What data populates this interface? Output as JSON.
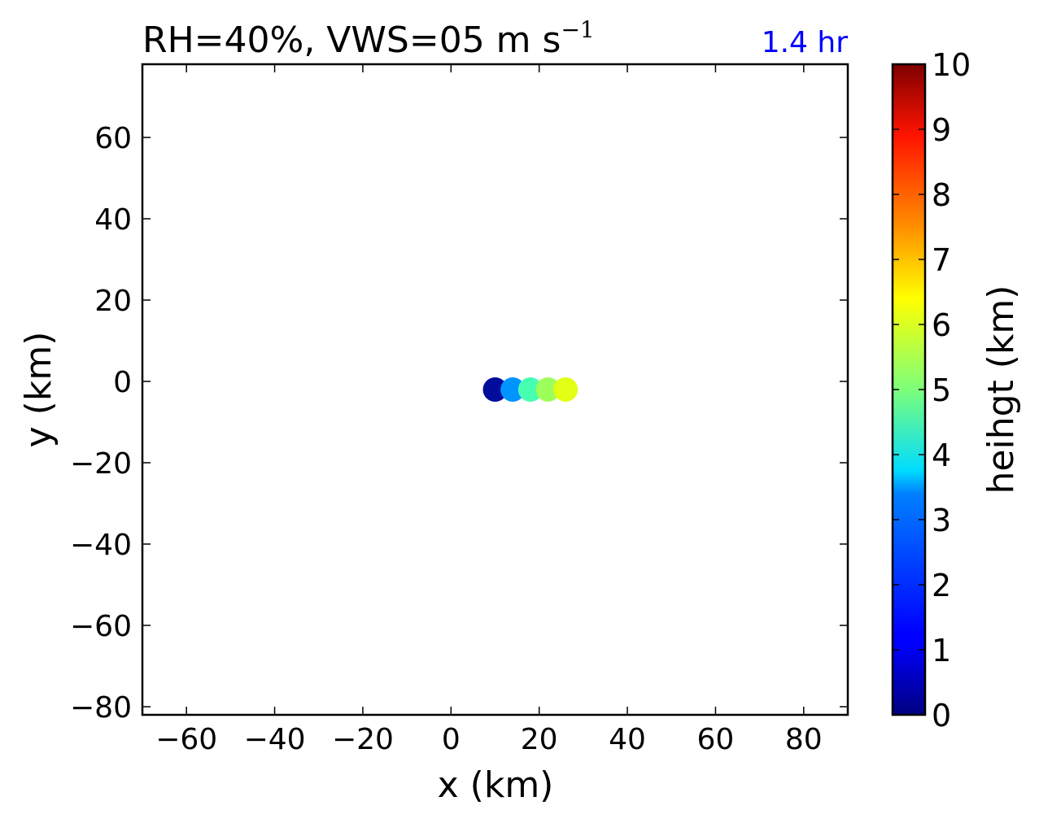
{
  "chart_data": {
    "type": "scatter",
    "title": "RH=40%, VWS=05 m s",
    "title_superscript": "−1",
    "annotation": "1.4 hr",
    "annotation_color": "#0000ff",
    "xlabel": "x (km)",
    "ylabel": "y (km)",
    "xlim": [
      -70,
      90
    ],
    "ylim": [
      -82,
      78
    ],
    "xticks": [
      -60,
      -40,
      -20,
      0,
      20,
      40,
      60,
      80
    ],
    "xtick_labels": [
      "−60",
      "−40",
      "−20",
      "0",
      "20",
      "40",
      "60",
      "80"
    ],
    "yticks": [
      60,
      40,
      20,
      0,
      -20,
      -40,
      -60,
      -80
    ],
    "ytick_labels": [
      "60",
      "40",
      "20",
      "0",
      "−20",
      "−40",
      "−60",
      "−80"
    ],
    "grid": false,
    "points": [
      {
        "x": 10,
        "y": -2,
        "height": 0.5,
        "color": "#000c9a"
      },
      {
        "x": 14,
        "y": -2,
        "height": 2.5,
        "color": "#0094ff"
      },
      {
        "x": 18,
        "y": -2,
        "height": 4.5,
        "color": "#46ffb0"
      },
      {
        "x": 22,
        "y": -2,
        "height": 5.5,
        "color": "#9dff59"
      },
      {
        "x": 26,
        "y": -2,
        "height": 6.5,
        "color": "#e3ff14"
      }
    ],
    "colorbar": {
      "label": "heihgt (km)",
      "colormap": "jet",
      "range": [
        0,
        10
      ],
      "ticks": [
        0,
        1,
        2,
        3,
        4,
        5,
        6,
        7,
        8,
        9,
        10
      ],
      "tick_labels": [
        "0",
        "1",
        "2",
        "3",
        "4",
        "5",
        "6",
        "7",
        "8",
        "9",
        "10"
      ]
    }
  }
}
